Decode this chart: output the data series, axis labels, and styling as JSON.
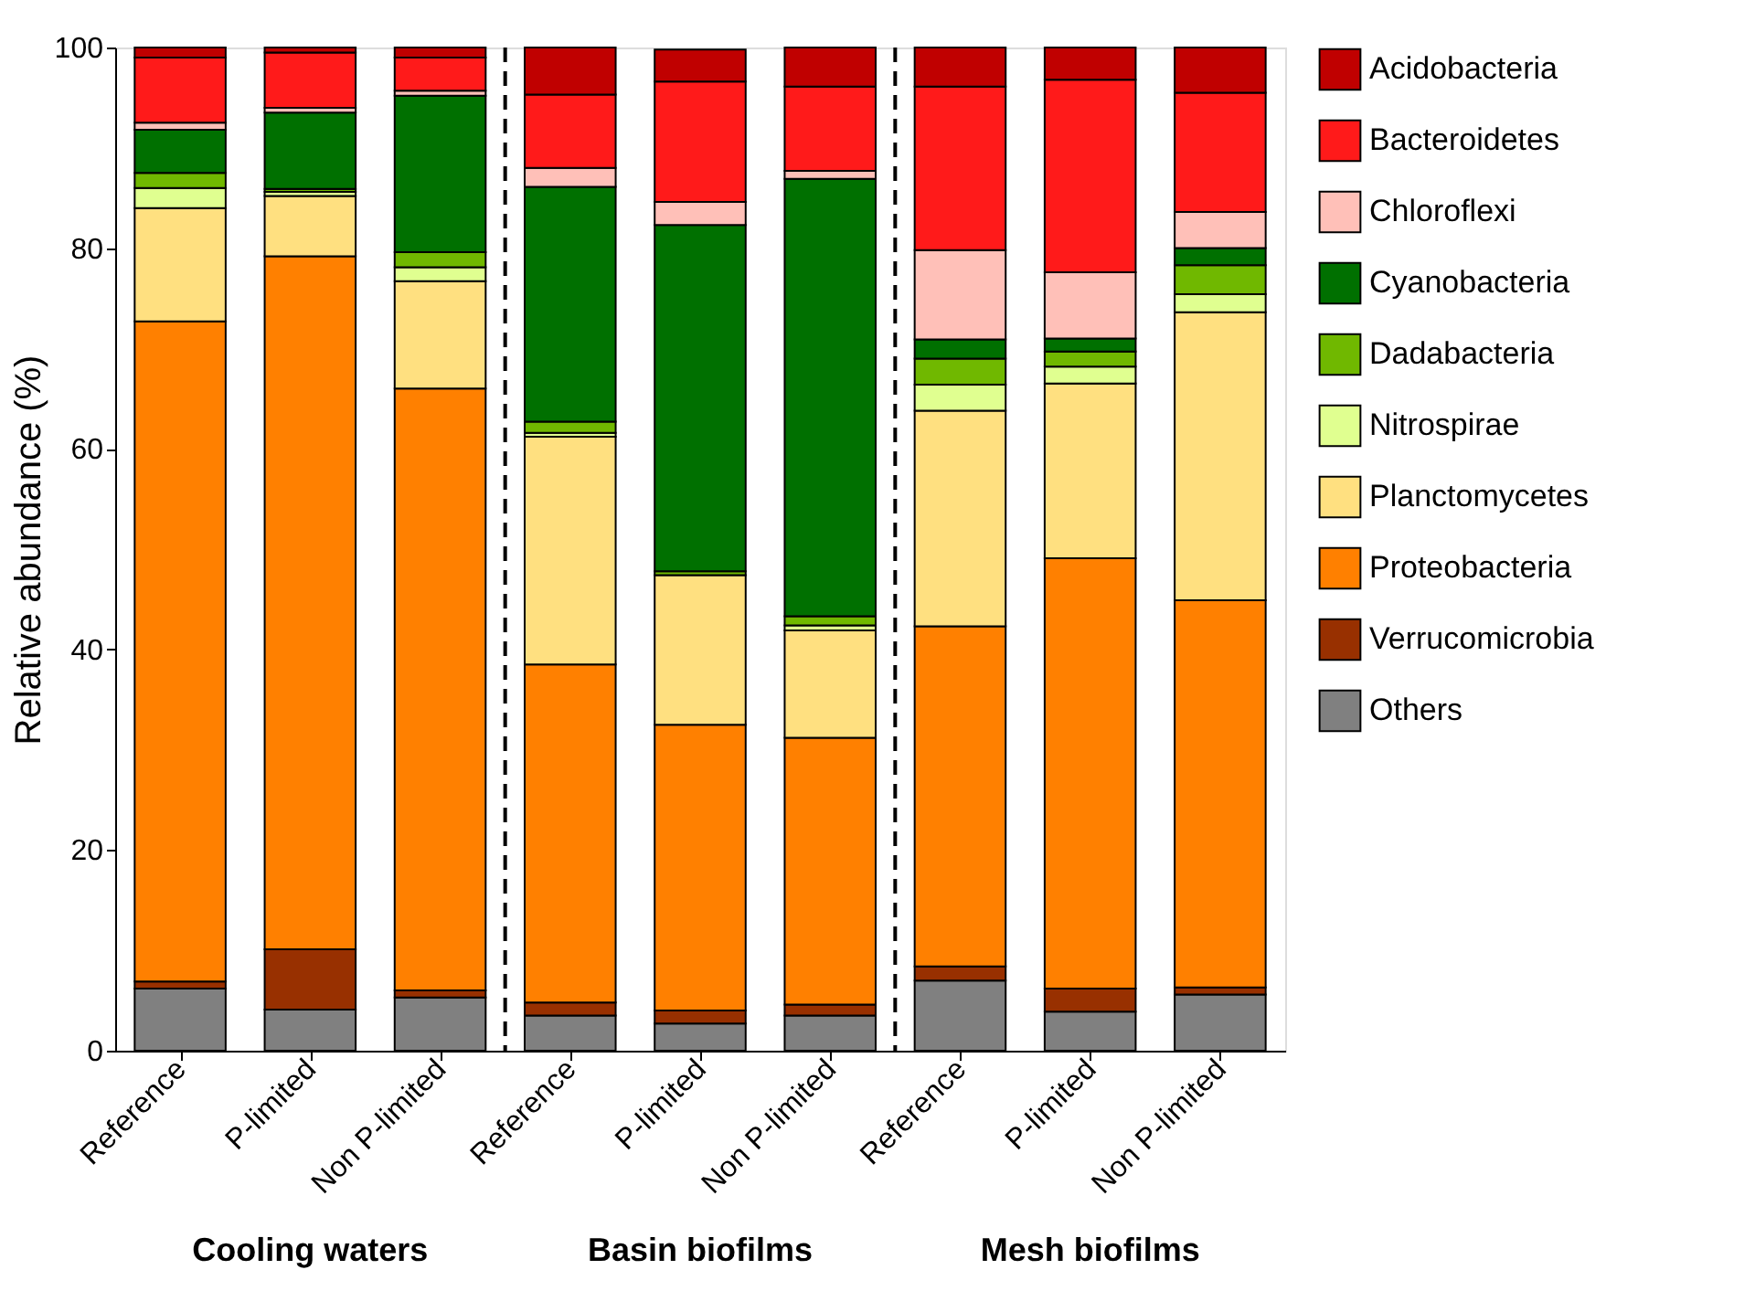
{
  "chart_data": {
    "type": "bar",
    "stacked": true,
    "ylabel": "Relative abundance (%)",
    "categories": [
      "Reference",
      "P-limited",
      "Non P-limited",
      "Reference",
      "P-limited",
      "Non P-limited",
      "Reference",
      "P-limited",
      "Non P-limited"
    ],
    "annotations": [
      "Cooling waters",
      "Basin biofilms",
      "Mesh biofilms"
    ],
    "ylim": [
      0,
      100
    ],
    "yticks": [
      0,
      20,
      40,
      60,
      80,
      100
    ],
    "grid": false,
    "legend": "right",
    "series": [
      {
        "name": "Others",
        "color": "#808080",
        "values": [
          6.2,
          4.1,
          5.3,
          3.5,
          2.7,
          3.5,
          7.0,
          3.9,
          5.6
        ]
      },
      {
        "name": "Verrucomicrobia",
        "color": "#983000",
        "values": [
          0.7,
          6.0,
          0.7,
          1.3,
          1.3,
          1.1,
          1.4,
          2.3,
          0.7
        ]
      },
      {
        "name": "Proteobacteria",
        "color": "#ff8000",
        "values": [
          65.8,
          69.1,
          60.0,
          33.7,
          28.5,
          26.6,
          33.9,
          42.9,
          38.6
        ]
      },
      {
        "name": "Planctomycetes",
        "color": "#ffe080",
        "values": [
          11.3,
          6.0,
          10.7,
          22.7,
          14.9,
          10.7,
          21.5,
          17.4,
          28.7
        ]
      },
      {
        "name": "Nitrospirae",
        "color": "#e0ff90",
        "values": [
          2.0,
          0.4,
          1.4,
          0.4,
          null,
          0.5,
          2.6,
          1.7,
          1.8
        ]
      },
      {
        "name": "Dadabacteria",
        "color": "#70b800",
        "values": [
          1.5,
          0.3,
          1.5,
          1.1,
          0.4,
          0.9,
          2.6,
          1.5,
          2.9
        ]
      },
      {
        "name": "Cyanobacteria",
        "color": "#007000",
        "values": [
          4.3,
          7.6,
          15.6,
          23.4,
          34.5,
          43.6,
          1.9,
          1.3,
          1.7
        ]
      },
      {
        "name": "Chloroflexi",
        "color": "#ffc0b8",
        "values": [
          0.7,
          0.5,
          0.5,
          1.9,
          2.3,
          0.8,
          8.9,
          6.6,
          3.6
        ]
      },
      {
        "name": "Bacteroidetes",
        "color": "#ff1a1a",
        "values": [
          6.5,
          5.5,
          3.3,
          7.3,
          12.0,
          8.4,
          16.3,
          19.2,
          11.9
        ]
      },
      {
        "name": "Acidobacteria",
        "color": "#c00000",
        "values": [
          1.0,
          0.5,
          1.0,
          4.7,
          3.2,
          3.9,
          3.9,
          3.2,
          4.5
        ]
      }
    ]
  }
}
